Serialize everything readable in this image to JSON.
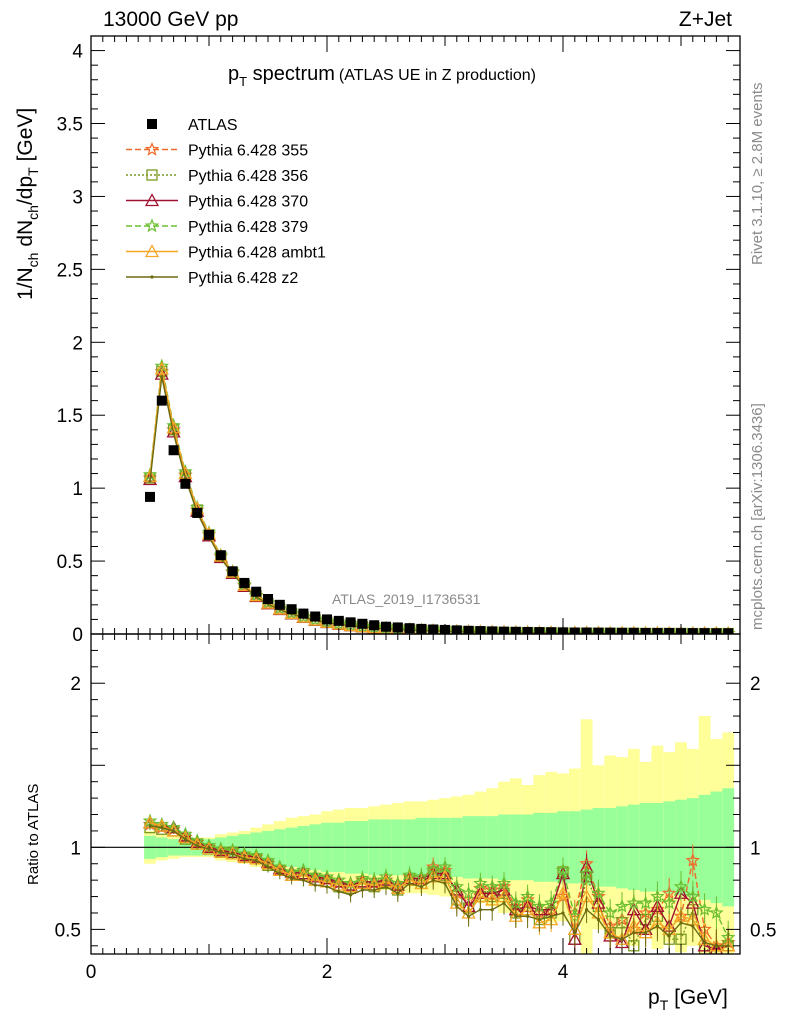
{
  "header": {
    "left": "13000 GeV pp",
    "right": "Z+Jet"
  },
  "side_labels": {
    "rivet": "Rivet 3.1.10, ≥ 2.8M events",
    "mcplots": "mcplots.cern.ch [arXiv:1306.3436]"
  },
  "watermark": "ATLAS_2019_I1736531",
  "chart_data": {
    "type": "line",
    "title_main": "p",
    "title_sub": "T",
    "title_rest": " spectrum",
    "title_paren": "(ATLAS UE in Z production)",
    "xlabel_main": "p",
    "xlabel_sub": "T",
    "xlabel_unit": " [GeV]",
    "ylabel_text": "1/N",
    "ylabel_sub1": "ch",
    "ylabel_mid": " dN",
    "ylabel_sub2": "ch",
    "ylabel_mid2": "/dp",
    "ylabel_sub3": "T",
    "ylabel_unit": " [GeV]",
    "ratio_ylabel": "Ratio to ATLAS",
    "xlim": [
      0,
      5.5
    ],
    "ylim": [
      0,
      4.1
    ],
    "ratio_ylim": [
      0.35,
      2.3
    ],
    "x_ticks": [
      0,
      2,
      4
    ],
    "x_tick_labels": [
      "0",
      "2",
      "4"
    ],
    "y_ticks": [
      0,
      0.5,
      1,
      1.5,
      2,
      2.5,
      3,
      3.5,
      4
    ],
    "y_tick_labels": [
      "0",
      "0.5",
      "1",
      "1.5",
      "2",
      "2.5",
      "3",
      "3.5",
      "4"
    ],
    "ratio_ticks": [
      0.5,
      1,
      2
    ],
    "ratio_tick_labels": [
      "0.5",
      "1",
      "2"
    ],
    "legend": [
      {
        "label": "ATLAS",
        "color": "#000000",
        "marker": "square",
        "dash": "none"
      },
      {
        "label": "Pythia 6.428 355",
        "color": "#f06a2a",
        "marker": "star",
        "dash": "6,3"
      },
      {
        "label": "Pythia 6.428 356",
        "color": "#7a9a20",
        "marker": "open-square",
        "dash": "2,2"
      },
      {
        "label": "Pythia 6.428 370",
        "color": "#a01030",
        "marker": "open-triangle",
        "dash": "none"
      },
      {
        "label": "Pythia 6.428 379",
        "color": "#6abf30",
        "marker": "star",
        "dash": "6,3"
      },
      {
        "label": "Pythia 6.428 ambt1",
        "color": "#f5a623",
        "marker": "open-triangle",
        "dash": "none"
      },
      {
        "label": "Pythia 6.428 z2",
        "color": "#6b6b10",
        "marker": "dot",
        "dash": "none"
      }
    ],
    "x": [
      0.5,
      0.6,
      0.7,
      0.8,
      0.9,
      1.0,
      1.1,
      1.2,
      1.3,
      1.4,
      1.5,
      1.6,
      1.7,
      1.8,
      1.9,
      2.0,
      2.1,
      2.2,
      2.3,
      2.4,
      2.5,
      2.6,
      2.7,
      2.8,
      2.9,
      3.0,
      3.1,
      3.2,
      3.3,
      3.4,
      3.5,
      3.6,
      3.7,
      3.8,
      3.9,
      4.0,
      4.1,
      4.2,
      4.3,
      4.4,
      4.5,
      4.6,
      4.7,
      4.8,
      4.9,
      5.0,
      5.1,
      5.2,
      5.3,
      5.4
    ],
    "atlas": [
      0.94,
      1.6,
      1.26,
      1.03,
      0.83,
      0.68,
      0.54,
      0.43,
      0.35,
      0.29,
      0.24,
      0.2,
      0.17,
      0.14,
      0.12,
      0.1,
      0.09,
      0.08,
      0.07,
      0.06,
      0.05,
      0.045,
      0.04,
      0.035,
      0.031,
      0.028,
      0.025,
      0.022,
      0.02,
      0.018,
      0.016,
      0.015,
      0.014,
      0.013,
      0.012,
      0.011,
      0.01,
      0.01,
      0.009,
      0.009,
      0.008,
      0.008,
      0.007,
      0.007,
      0.007,
      0.006,
      0.006,
      0.006,
      0.005,
      0.005
    ],
    "mc": [
      1.07,
      1.8,
      1.4,
      1.09,
      0.85,
      0.68,
      0.53,
      0.42,
      0.33,
      0.26,
      0.21,
      0.17,
      0.14,
      0.115,
      0.095,
      0.08,
      0.068,
      0.058,
      0.05,
      0.043,
      0.037,
      0.032,
      0.028,
      0.025,
      0.022,
      0.019,
      0.017,
      0.015,
      0.014,
      0.012,
      0.011,
      0.01,
      0.009,
      0.008,
      0.008,
      0.007,
      0.006,
      0.006,
      0.006,
      0.005,
      0.005,
      0.005,
      0.004,
      0.004,
      0.004,
      0.004,
      0.003,
      0.003,
      0.003,
      0.003
    ],
    "band_inner": [
      0.07,
      0.06,
      0.05,
      0.05,
      0.05,
      0.05,
      0.06,
      0.07,
      0.08,
      0.09,
      0.1,
      0.11,
      0.12,
      0.13,
      0.14,
      0.15,
      0.15,
      0.16,
      0.16,
      0.17,
      0.17,
      0.17,
      0.17,
      0.18,
      0.18,
      0.18,
      0.18,
      0.19,
      0.19,
      0.19,
      0.2,
      0.2,
      0.2,
      0.21,
      0.21,
      0.22,
      0.22,
      0.23,
      0.24,
      0.24,
      0.25,
      0.26,
      0.27,
      0.27,
      0.28,
      0.29,
      0.3,
      0.32,
      0.34,
      0.36
    ],
    "band_outer": [
      0.1,
      0.08,
      0.07,
      0.06,
      0.06,
      0.06,
      0.08,
      0.09,
      0.1,
      0.12,
      0.14,
      0.16,
      0.18,
      0.19,
      0.2,
      0.22,
      0.23,
      0.24,
      0.24,
      0.25,
      0.26,
      0.27,
      0.28,
      0.28,
      0.29,
      0.3,
      0.31,
      0.32,
      0.34,
      0.36,
      0.4,
      0.42,
      0.38,
      0.44,
      0.46,
      0.45,
      0.48,
      0.78,
      0.5,
      0.56,
      0.55,
      0.6,
      0.52,
      0.62,
      0.58,
      0.64,
      0.6,
      0.8,
      0.66,
      0.7
    ],
    "ratio_series": [
      {
        "label": "Pythia 6.428 355",
        "values": [
          1.14,
          1.12,
          1.11,
          1.06,
          1.03,
          1.0,
          0.98,
          0.98,
          0.95,
          0.94,
          0.9,
          0.87,
          0.84,
          0.85,
          0.82,
          0.8,
          0.78,
          0.76,
          0.8,
          0.78,
          0.8,
          0.76,
          0.82,
          0.8,
          0.88,
          0.86,
          0.72,
          0.68,
          0.75,
          0.74,
          0.76,
          0.64,
          0.68,
          0.6,
          0.62,
          0.7,
          0.6,
          0.9,
          0.7,
          0.52,
          0.56,
          0.5,
          0.6,
          0.62,
          0.72,
          0.58,
          0.92,
          0.5,
          0.4,
          0.42
        ]
      },
      {
        "label": "Pythia 6.428 356",
        "values": [
          1.12,
          1.11,
          1.1,
          1.05,
          1.02,
          0.99,
          0.97,
          0.97,
          0.94,
          0.93,
          0.89,
          0.86,
          0.83,
          0.83,
          0.8,
          0.79,
          0.76,
          0.75,
          0.78,
          0.76,
          0.78,
          0.74,
          0.8,
          0.78,
          0.85,
          0.83,
          0.68,
          0.63,
          0.7,
          0.7,
          0.72,
          0.6,
          0.64,
          0.56,
          0.6,
          0.85,
          0.44,
          0.82,
          0.64,
          0.48,
          0.54,
          0.4,
          0.56,
          0.58,
          0.44,
          0.44,
          0.62,
          0.38,
          0.36,
          0.4
        ]
      },
      {
        "label": "Pythia 6.428 370",
        "values": [
          1.15,
          1.13,
          1.12,
          1.07,
          1.03,
          1.0,
          0.98,
          0.97,
          0.95,
          0.94,
          0.91,
          0.87,
          0.85,
          0.84,
          0.82,
          0.81,
          0.79,
          0.77,
          0.79,
          0.79,
          0.8,
          0.77,
          0.81,
          0.81,
          0.84,
          0.84,
          0.74,
          0.64,
          0.72,
          0.72,
          0.74,
          0.62,
          0.64,
          0.62,
          0.62,
          0.84,
          0.44,
          0.88,
          0.66,
          0.46,
          0.42,
          0.62,
          0.5,
          0.64,
          0.52,
          0.72,
          0.66,
          0.4,
          0.38,
          0.4
        ]
      },
      {
        "label": "Pythia 6.428 379",
        "values": [
          1.16,
          1.14,
          1.12,
          1.08,
          1.04,
          1.01,
          0.99,
          0.98,
          0.96,
          0.95,
          0.92,
          0.88,
          0.85,
          0.86,
          0.83,
          0.82,
          0.8,
          0.78,
          0.81,
          0.8,
          0.82,
          0.78,
          0.83,
          0.82,
          0.86,
          0.88,
          0.76,
          0.72,
          0.78,
          0.76,
          0.78,
          0.66,
          0.7,
          0.64,
          0.66,
          0.86,
          0.58,
          0.84,
          0.72,
          0.6,
          0.64,
          0.66,
          0.66,
          0.7,
          0.66,
          0.76,
          0.7,
          0.62,
          0.6,
          0.45
        ]
      },
      {
        "label": "Pythia 6.428 ambt1",
        "values": [
          1.15,
          1.13,
          1.1,
          1.06,
          1.02,
          0.99,
          0.97,
          0.96,
          0.94,
          0.93,
          0.9,
          0.86,
          0.83,
          0.83,
          0.8,
          0.79,
          0.77,
          0.76,
          0.78,
          0.77,
          0.79,
          0.75,
          0.8,
          0.78,
          0.82,
          0.82,
          0.66,
          0.6,
          0.7,
          0.68,
          0.7,
          0.58,
          0.62,
          0.54,
          0.56,
          0.72,
          0.5,
          0.7,
          0.6,
          0.48,
          0.44,
          0.52,
          0.48,
          0.54,
          0.5,
          0.58,
          0.56,
          0.44,
          0.4,
          0.4
        ]
      },
      {
        "label": "Pythia 6.428 z2",
        "values": [
          1.13,
          1.12,
          1.1,
          1.05,
          1.01,
          0.99,
          0.97,
          0.96,
          0.93,
          0.92,
          0.88,
          0.84,
          0.81,
          0.8,
          0.77,
          0.76,
          0.73,
          0.71,
          0.74,
          0.74,
          0.76,
          0.72,
          0.78,
          0.76,
          0.8,
          0.78,
          0.64,
          0.58,
          0.62,
          0.62,
          0.66,
          0.58,
          0.58,
          0.56,
          0.58,
          0.6,
          0.48,
          0.62,
          0.56,
          0.46,
          0.44,
          0.48,
          0.48,
          0.52,
          0.46,
          0.54,
          0.52,
          0.42,
          0.4,
          0.4
        ]
      }
    ]
  }
}
